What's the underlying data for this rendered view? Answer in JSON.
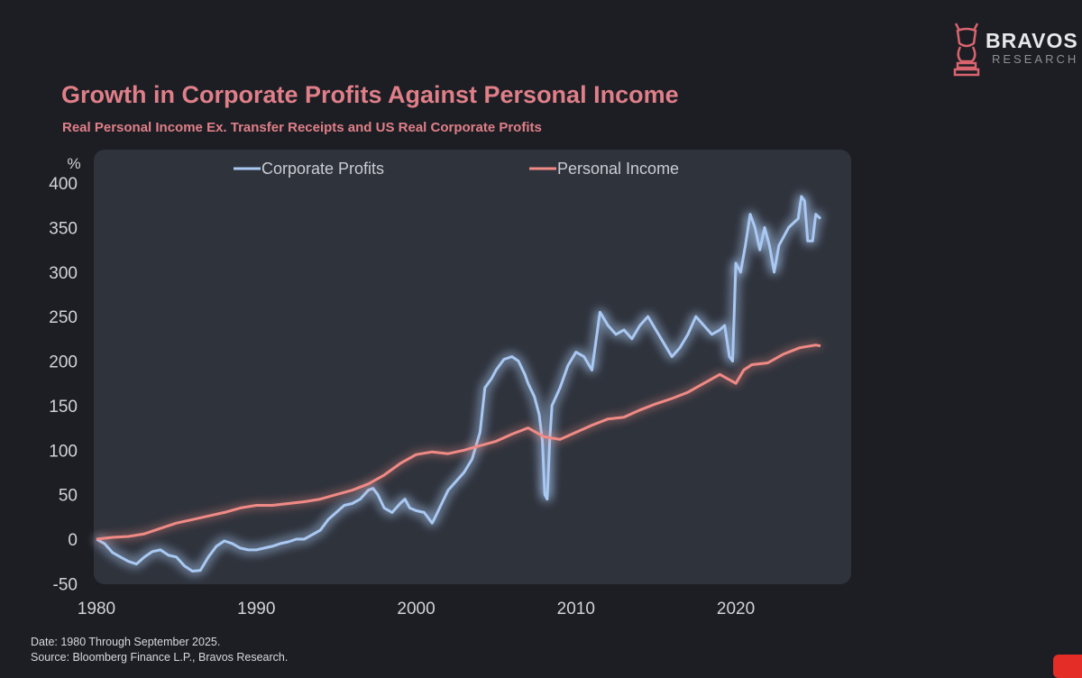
{
  "brand": {
    "name": "BRAVOS",
    "sub": "RESEARCH"
  },
  "footer": {
    "date": "Date: 1980 Through September 2025.",
    "source": "Source: Bloomberg Finance L.P., Bravos Research."
  },
  "colors": {
    "background": "#1c1e23",
    "panel": "#2f333c",
    "title": "#e07f89",
    "corporate": "#a9c8f2",
    "personal": "#f08a85",
    "axis_text": "#d2d3d6"
  },
  "chart_data": {
    "type": "line",
    "title": "Growth in Corporate Profits Against Personal Income",
    "subtitle": "Real Personal Income Ex. Transfer Receipts and US Real Corporate Profits",
    "ylabel": "%",
    "xlabel": "",
    "xlim": [
      1980,
      2025.75
    ],
    "ylim": [
      -50,
      400
    ],
    "x_ticks": [
      "1980",
      "1990",
      "2000",
      "2010",
      "2020"
    ],
    "y_ticks": [
      "400",
      "350",
      "300",
      "250",
      "200",
      "150",
      "100",
      "50",
      "0",
      "-50"
    ],
    "legend_position": "top",
    "series": [
      {
        "name": "Corporate Profits",
        "points": [
          [
            1980,
            0
          ],
          [
            1980.5,
            -5
          ],
          [
            1981,
            -15
          ],
          [
            1981.5,
            -20
          ],
          [
            1982,
            -25
          ],
          [
            1982.5,
            -28
          ],
          [
            1983,
            -20
          ],
          [
            1983.5,
            -14
          ],
          [
            1984,
            -12
          ],
          [
            1984.5,
            -18
          ],
          [
            1985,
            -20
          ],
          [
            1985.5,
            -30
          ],
          [
            1986,
            -36
          ],
          [
            1986.5,
            -35
          ],
          [
            1987,
            -20
          ],
          [
            1987.5,
            -8
          ],
          [
            1988,
            -2
          ],
          [
            1988.5,
            -5
          ],
          [
            1989,
            -10
          ],
          [
            1989.5,
            -12
          ],
          [
            1990,
            -12
          ],
          [
            1990.5,
            -10
          ],
          [
            1991,
            -8
          ],
          [
            1991.5,
            -5
          ],
          [
            1992,
            -3
          ],
          [
            1992.5,
            0
          ],
          [
            1993,
            0
          ],
          [
            1993.5,
            5
          ],
          [
            1994,
            10
          ],
          [
            1994.5,
            22
          ],
          [
            1995,
            30
          ],
          [
            1995.5,
            38
          ],
          [
            1996,
            40
          ],
          [
            1996.5,
            45
          ],
          [
            1997,
            55
          ],
          [
            1997.3,
            57
          ],
          [
            1997.6,
            50
          ],
          [
            1998,
            35
          ],
          [
            1998.5,
            30
          ],
          [
            1999,
            40
          ],
          [
            1999.3,
            45
          ],
          [
            1999.6,
            35
          ],
          [
            2000,
            32
          ],
          [
            2000.5,
            30
          ],
          [
            2001,
            18
          ],
          [
            2001.2,
            25
          ],
          [
            2001.6,
            40
          ],
          [
            2002,
            55
          ],
          [
            2002.5,
            65
          ],
          [
            2003,
            75
          ],
          [
            2003.5,
            90
          ],
          [
            2004,
            120
          ],
          [
            2004.3,
            170
          ],
          [
            2004.7,
            180
          ],
          [
            2005,
            190
          ],
          [
            2005.5,
            202
          ],
          [
            2006,
            205
          ],
          [
            2006.4,
            200
          ],
          [
            2006.8,
            185
          ],
          [
            2007,
            175
          ],
          [
            2007.4,
            160
          ],
          [
            2007.7,
            140
          ],
          [
            2007.9,
            110
          ],
          [
            2008.05,
            50
          ],
          [
            2008.2,
            45
          ],
          [
            2008.35,
            110
          ],
          [
            2008.5,
            150
          ],
          [
            2009,
            170
          ],
          [
            2009.5,
            195
          ],
          [
            2010,
            210
          ],
          [
            2010.5,
            205
          ],
          [
            2011,
            190
          ],
          [
            2011.5,
            255
          ],
          [
            2012,
            240
          ],
          [
            2012.5,
            230
          ],
          [
            2013,
            235
          ],
          [
            2013.5,
            225
          ],
          [
            2014,
            240
          ],
          [
            2014.5,
            250
          ],
          [
            2015,
            235
          ],
          [
            2015.5,
            220
          ],
          [
            2016,
            205
          ],
          [
            2016.5,
            215
          ],
          [
            2017,
            230
          ],
          [
            2017.5,
            250
          ],
          [
            2018,
            240
          ],
          [
            2018.5,
            230
          ],
          [
            2019,
            235
          ],
          [
            2019.3,
            240
          ],
          [
            2019.6,
            205
          ],
          [
            2019.8,
            200
          ],
          [
            2020,
            310
          ],
          [
            2020.3,
            300
          ],
          [
            2020.6,
            330
          ],
          [
            2020.9,
            365
          ],
          [
            2021.2,
            350
          ],
          [
            2021.5,
            325
          ],
          [
            2021.8,
            350
          ],
          [
            2022.1,
            330
          ],
          [
            2022.4,
            300
          ],
          [
            2022.7,
            330
          ],
          [
            2023,
            340
          ],
          [
            2023.3,
            350
          ],
          [
            2023.6,
            355
          ],
          [
            2023.9,
            360
          ],
          [
            2024.1,
            385
          ],
          [
            2024.3,
            380
          ],
          [
            2024.5,
            335
          ],
          [
            2024.8,
            335
          ],
          [
            2025,
            365
          ],
          [
            2025.3,
            360
          ]
        ]
      },
      {
        "name": "Personal Income",
        "points": [
          [
            1980,
            0
          ],
          [
            1981,
            2
          ],
          [
            1982,
            3
          ],
          [
            1983,
            6
          ],
          [
            1984,
            12
          ],
          [
            1985,
            18
          ],
          [
            1986,
            22
          ],
          [
            1987,
            26
          ],
          [
            1988,
            30
          ],
          [
            1989,
            35
          ],
          [
            1990,
            38
          ],
          [
            1991,
            38
          ],
          [
            1992,
            40
          ],
          [
            1993,
            42
          ],
          [
            1994,
            45
          ],
          [
            1995,
            50
          ],
          [
            1996,
            55
          ],
          [
            1997,
            62
          ],
          [
            1998,
            72
          ],
          [
            1999,
            85
          ],
          [
            2000,
            95
          ],
          [
            2001,
            98
          ],
          [
            2002,
            96
          ],
          [
            2003,
            100
          ],
          [
            2004,
            105
          ],
          [
            2005,
            110
          ],
          [
            2006,
            118
          ],
          [
            2007,
            125
          ],
          [
            2008,
            115
          ],
          [
            2009,
            112
          ],
          [
            2010,
            120
          ],
          [
            2011,
            128
          ],
          [
            2012,
            135
          ],
          [
            2013,
            137
          ],
          [
            2014,
            145
          ],
          [
            2015,
            152
          ],
          [
            2016,
            158
          ],
          [
            2017,
            165
          ],
          [
            2018,
            175
          ],
          [
            2019,
            185
          ],
          [
            2020,
            175
          ],
          [
            2020.5,
            190
          ],
          [
            2021,
            196
          ],
          [
            2022,
            198
          ],
          [
            2023,
            208
          ],
          [
            2024,
            215
          ],
          [
            2025,
            218
          ],
          [
            2025.3,
            217
          ]
        ]
      }
    ]
  }
}
